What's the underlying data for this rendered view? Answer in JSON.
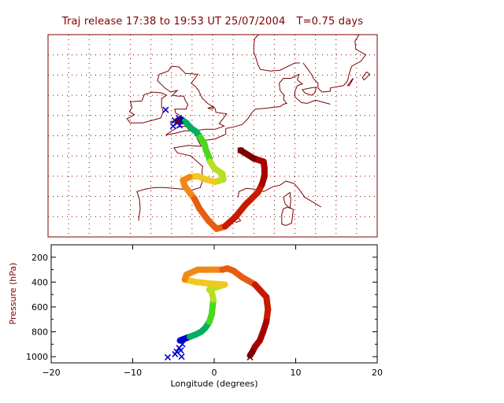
{
  "title": {
    "release": "Traj release 17:38 to 19:53 UT 25/07/2004",
    "duration": "T=0.75 days"
  },
  "colors": {
    "frame": "#7f0000",
    "text_lower": "#000000",
    "traj_scale": [
      "#0000c8",
      "#00b060",
      "#48d820",
      "#b8e020",
      "#f0c820",
      "#f08818",
      "#e85c10",
      "#c81a00",
      "#a80000",
      "#7a0000"
    ]
  },
  "chart_data": [
    {
      "type": "map",
      "panel": "trajectory-map",
      "xlim": [
        -20,
        20
      ],
      "ylim": [
        37.5,
        62.5
      ],
      "grid": true,
      "grid_style": "dotted",
      "basemap": "coastlines",
      "trajectories": [
        {
          "release": [
            -4.2,
            51.8
          ],
          "points": [
            [
              -4.2,
              51.8
            ],
            [
              -3.8,
              52.0
            ],
            [
              -3.5,
              51.8
            ],
            [
              -3.2,
              51.6
            ],
            [
              -2.7,
              51.0
            ],
            [
              -2.0,
              50.5
            ],
            [
              -1.5,
              49.8
            ],
            [
              -1.0,
              49.0
            ],
            [
              -0.8,
              48.2
            ],
            [
              -0.5,
              47.5
            ],
            [
              -0.3,
              46.8
            ],
            [
              0.2,
              46.0
            ],
            [
              1.2,
              45.3
            ],
            [
              1.3,
              44.6
            ],
            [
              0.3,
              44.3
            ],
            [
              -0.8,
              44.6
            ],
            [
              -1.8,
              45.0
            ],
            [
              -2.8,
              44.9
            ],
            [
              -3.6,
              44.5
            ],
            [
              -3.4,
              43.8
            ],
            [
              -2.8,
              43.0
            ],
            [
              -2.2,
              42.2
            ],
            [
              -1.6,
              41.0
            ],
            [
              -0.5,
              39.5
            ],
            [
              0.5,
              38.5
            ],
            [
              1.5,
              38.8
            ],
            [
              2.8,
              40.0
            ],
            [
              4.0,
              41.5
            ],
            [
              5.5,
              43.0
            ],
            [
              6.0,
              44.0
            ],
            [
              6.3,
              45.0
            ],
            [
              6.3,
              46.0
            ],
            [
              6.2,
              46.8
            ],
            [
              5.0,
              47.2
            ],
            [
              3.4,
              48.2
            ]
          ]
        },
        {
          "release": [
            -5.7,
            53.2
          ],
          "points": [
            [
              -5.7,
              53.2
            ]
          ]
        }
      ],
      "cluster_markers": [
        [
          -4.6,
          51.9
        ],
        [
          -4.3,
          51.6
        ],
        [
          -4.0,
          51.3
        ],
        [
          -4.8,
          51.2
        ],
        [
          -3.9,
          51.9
        ],
        [
          -4.1,
          52.2
        ]
      ]
    },
    {
      "type": "line",
      "panel": "pressure-profile",
      "xlim": [
        -20,
        20
      ],
      "ylim": [
        1050,
        100
      ],
      "xlabel": "Longitude  (degrees)",
      "ylabel": "Pressure  (hPa)",
      "xticks": [
        -20,
        -10,
        0,
        10,
        20
      ],
      "yticks": [
        200,
        400,
        600,
        800,
        1000
      ],
      "series": [
        {
          "x": [
            -4.2,
            -3.8,
            -3.0,
            -2.2,
            -1.6,
            -1.1,
            -0.6,
            -0.3,
            -0.2,
            -0.1,
            -0.3,
            -0.6,
            0.3,
            1.3,
            -0.8,
            -2.2,
            -3.6,
            -3.4,
            -2.0,
            -0.3,
            1.0,
            1.6,
            2.4,
            3.4,
            5.0,
            6.4,
            6.6,
            6.4,
            6.0,
            5.6,
            5.0,
            4.7,
            4.4
          ],
          "y": [
            870,
            860,
            840,
            820,
            800,
            770,
            720,
            660,
            600,
            540,
            480,
            460,
            440,
            420,
            410,
            400,
            380,
            340,
            300,
            300,
            300,
            290,
            310,
            360,
            420,
            520,
            620,
            720,
            800,
            870,
            920,
            960,
            990
          ]
        }
      ],
      "release_markers": [
        {
          "x": -5.7,
          "y": 1005
        },
        {
          "x": 4.4,
          "y": 1005
        }
      ],
      "cluster_markers": [
        [
          -4.6,
          960
        ],
        [
          -4.3,
          930
        ],
        [
          -4.0,
          1000
        ],
        [
          -4.8,
          980
        ],
        [
          -3.9,
          900
        ],
        [
          -4.1,
          950
        ]
      ]
    }
  ],
  "coastlines": [
    [
      [
        -6.5,
        57.6
      ],
      [
        -6.7,
        56.8
      ],
      [
        -5.8,
        55.9
      ],
      [
        -5.1,
        55.4
      ],
      [
        -4.3,
        55.6
      ],
      [
        -4.9,
        55.0
      ],
      [
        -4.2,
        54.9
      ],
      [
        -3.5,
        54.9
      ],
      [
        -3.3,
        54.3
      ],
      [
        -3.0,
        53.9
      ],
      [
        -3.2,
        53.4
      ],
      [
        -3.2,
        53.3
      ],
      [
        -4.6,
        53.3
      ],
      [
        -4.5,
        52.8
      ],
      [
        -4.1,
        52.6
      ],
      [
        -4.0,
        52.2
      ],
      [
        -4.8,
        51.8
      ],
      [
        -5.2,
        51.7
      ],
      [
        -4.4,
        51.6
      ],
      [
        -3.3,
        51.4
      ],
      [
        -3.0,
        51.2
      ],
      [
        -4.2,
        51.1
      ],
      [
        -5.7,
        50.1
      ],
      [
        -4.6,
        50.3
      ],
      [
        -3.4,
        50.6
      ],
      [
        -2.3,
        50.6
      ],
      [
        -1.0,
        50.8
      ],
      [
        0.3,
        50.8
      ],
      [
        1.4,
        51.2
      ],
      [
        0.8,
        51.5
      ],
      [
        1.7,
        52.7
      ],
      [
        0.4,
        52.9
      ],
      [
        0.3,
        53.4
      ],
      [
        -0.6,
        54.0
      ],
      [
        -1.3,
        54.7
      ],
      [
        -1.7,
        55.6
      ],
      [
        -2.1,
        56.1
      ],
      [
        -2.6,
        56.5
      ],
      [
        -2.0,
        57.3
      ],
      [
        -1.8,
        57.6
      ],
      [
        -3.3,
        57.7
      ],
      [
        -4.1,
        58.5
      ],
      [
        -5.0,
        58.6
      ],
      [
        -5.4,
        58.0
      ],
      [
        -6.5,
        57.6
      ]
    ],
    [
      [
        -6.3,
        52.2
      ],
      [
        -6.0,
        53.0
      ],
      [
        -6.2,
        53.6
      ],
      [
        -6.2,
        54.6
      ],
      [
        -5.6,
        55.0
      ],
      [
        -6.2,
        55.3
      ],
      [
        -7.3,
        55.4
      ],
      [
        -8.3,
        55.1
      ],
      [
        -8.6,
        54.3
      ],
      [
        -10.0,
        54.2
      ],
      [
        -9.8,
        53.5
      ],
      [
        -10.1,
        53.0
      ],
      [
        -9.5,
        52.6
      ],
      [
        -10.4,
        52.1
      ],
      [
        -10.0,
        51.6
      ],
      [
        -8.5,
        51.6
      ],
      [
        -6.3,
        52.2
      ]
    ],
    [
      [
        1.6,
        50.9
      ],
      [
        1.6,
        50.2
      ],
      [
        0.3,
        49.6
      ],
      [
        -1.2,
        49.4
      ],
      [
        -1.6,
        49.7
      ],
      [
        -1.9,
        49.7
      ],
      [
        -1.4,
        48.7
      ],
      [
        -3.0,
        48.8
      ],
      [
        -4.7,
        48.5
      ],
      [
        -4.3,
        47.9
      ],
      [
        -2.6,
        47.5
      ],
      [
        -2.1,
        47.0
      ],
      [
        -1.2,
        46.2
      ],
      [
        -1.3,
        45.6
      ],
      [
        -1.2,
        44.6
      ],
      [
        -1.5,
        43.6
      ],
      [
        -2.5,
        43.3
      ],
      [
        -3.7,
        43.4
      ],
      [
        -5.9,
        43.6
      ],
      [
        -7.0,
        43.6
      ],
      [
        -8.2,
        43.4
      ],
      [
        -9.2,
        43.1
      ],
      [
        -8.9,
        42.2
      ],
      [
        -8.8,
        41.0
      ],
      [
        -9.0,
        39.5
      ]
    ],
    [
      [
        1.6,
        50.9
      ],
      [
        2.6,
        51.1
      ],
      [
        3.6,
        51.4
      ],
      [
        4.2,
        52.0
      ],
      [
        4.8,
        52.9
      ],
      [
        5.2,
        53.3
      ],
      [
        6.5,
        53.4
      ],
      [
        7.2,
        53.5
      ],
      [
        8.2,
        53.6
      ],
      [
        8.6,
        53.9
      ],
      [
        9.0,
        54.0
      ],
      [
        8.6,
        54.5
      ],
      [
        8.7,
        55.0
      ],
      [
        8.2,
        55.6
      ],
      [
        8.1,
        56.5
      ],
      [
        8.6,
        57.1
      ],
      [
        9.5,
        57.1
      ],
      [
        10.5,
        57.6
      ],
      [
        10.3,
        56.9
      ],
      [
        10.9,
        56.4
      ],
      [
        10.3,
        56.2
      ],
      [
        10.0,
        55.5
      ],
      [
        10.0,
        54.8
      ],
      [
        10.8,
        54.1
      ],
      [
        11.5,
        54.0
      ],
      [
        12.5,
        54.4
      ],
      [
        13.6,
        54.1
      ],
      [
        14.3,
        53.9
      ]
    ],
    [
      [
        11.9,
        55.9
      ],
      [
        12.6,
        56.0
      ],
      [
        12.4,
        55.3
      ],
      [
        12.0,
        55.0
      ],
      [
        11.2,
        55.3
      ],
      [
        10.9,
        55.7
      ],
      [
        11.9,
        55.9
      ]
    ],
    [
      [
        10.6,
        59.0
      ],
      [
        10.0,
        59.0
      ],
      [
        9.2,
        58.6
      ],
      [
        8.2,
        58.1
      ],
      [
        7.0,
        58.0
      ],
      [
        5.8,
        58.2
      ],
      [
        5.5,
        58.8
      ],
      [
        5.3,
        59.5
      ],
      [
        5.0,
        60.3
      ],
      [
        5.0,
        61.0
      ],
      [
        5.1,
        62.0
      ],
      [
        5.6,
        62.5
      ]
    ],
    [
      [
        11.0,
        59.0
      ],
      [
        11.6,
        58.2
      ],
      [
        12.0,
        57.6
      ],
      [
        12.3,
        57.0
      ],
      [
        12.8,
        56.5
      ],
      [
        12.8,
        55.9
      ],
      [
        13.3,
        55.4
      ],
      [
        14.3,
        55.5
      ],
      [
        14.3,
        55.9
      ],
      [
        15.9,
        56.2
      ],
      [
        16.4,
        56.8
      ],
      [
        16.6,
        57.7
      ],
      [
        16.9,
        58.6
      ],
      [
        18.0,
        59.2
      ],
      [
        18.6,
        60.0
      ],
      [
        17.4,
        60.7
      ],
      [
        17.3,
        61.7
      ],
      [
        17.8,
        62.5
      ]
    ],
    [
      [
        18.7,
        57.9
      ],
      [
        18.2,
        57.2
      ],
      [
        18.4,
        56.9
      ],
      [
        19.1,
        57.6
      ],
      [
        18.7,
        57.9
      ]
    ],
    [
      [
        16.9,
        56.9
      ],
      [
        16.4,
        56.2
      ],
      [
        16.6,
        56.2
      ],
      [
        17.1,
        57.1
      ],
      [
        16.9,
        56.9
      ]
    ],
    [
      [
        3.1,
        42.4
      ],
      [
        3.2,
        43.1
      ],
      [
        4.1,
        43.5
      ],
      [
        5.0,
        43.4
      ],
      [
        6.2,
        43.1
      ],
      [
        7.3,
        43.7
      ],
      [
        8.2,
        43.9
      ],
      [
        8.9,
        44.4
      ],
      [
        9.9,
        44.1
      ],
      [
        10.5,
        43.4
      ],
      [
        11.2,
        42.4
      ],
      [
        12.2,
        41.8
      ],
      [
        13.2,
        41.2
      ]
    ],
    [
      [
        8.6,
        41.0
      ],
      [
        9.2,
        41.2
      ],
      [
        9.8,
        40.9
      ],
      [
        9.7,
        40.0
      ],
      [
        9.6,
        39.2
      ],
      [
        8.9,
        38.9
      ],
      [
        8.4,
        39.1
      ],
      [
        8.4,
        40.3
      ],
      [
        8.6,
        41.0
      ]
    ],
    [
      [
        9.4,
        41.0
      ],
      [
        9.5,
        42.2
      ],
      [
        9.4,
        43.0
      ],
      [
        8.6,
        42.4
      ],
      [
        8.8,
        41.6
      ],
      [
        9.4,
        41.0
      ]
    ],
    [
      [
        3.1,
        39.9
      ],
      [
        3.4,
        39.5
      ],
      [
        2.9,
        39.3
      ],
      [
        2.4,
        39.6
      ],
      [
        3.1,
        39.9
      ]
    ],
    [
      [
        -0.6,
        53.4
      ],
      [
        0.1,
        53.6
      ],
      [
        0.0,
        53.3
      ],
      [
        -0.6,
        53.4
      ]
    ]
  ]
}
